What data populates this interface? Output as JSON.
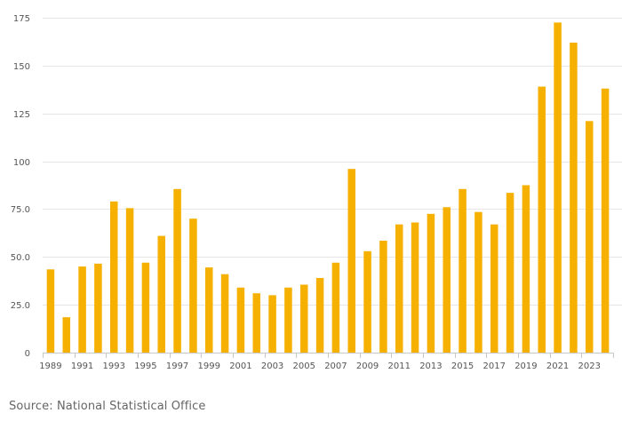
{
  "chart_data": {
    "type": "bar",
    "title": "",
    "xlabel": "",
    "ylabel": "",
    "categories": [
      "1989",
      "1990",
      "1991",
      "1992",
      "1993",
      "1994",
      "1995",
      "1996",
      "1997",
      "1998",
      "1999",
      "2000",
      "2001",
      "2002",
      "2003",
      "2004",
      "2005",
      "2006",
      "2007",
      "2008",
      "2009",
      "2010",
      "2011",
      "2012",
      "2013",
      "2014",
      "2015",
      "2016",
      "2017",
      "2018",
      "2019",
      "2020",
      "2021",
      "2022",
      "2023",
      "2024"
    ],
    "values": [
      43.5,
      18.5,
      45,
      46.5,
      79,
      75.5,
      47,
      61,
      85.5,
      70,
      44.5,
      41,
      34,
      31,
      30,
      34,
      35.5,
      39,
      47,
      96,
      53,
      58.5,
      67,
      68,
      72.5,
      76,
      85.5,
      73.5,
      67,
      83.5,
      87.5,
      139,
      172.5,
      162,
      121,
      138
    ],
    "ylim": [
      0,
      175
    ],
    "y_ticks": [
      0,
      25.0,
      50.0,
      75.0,
      100,
      125,
      150,
      175
    ],
    "y_tick_labels": [
      "0",
      "25.0",
      "50.0",
      "75.0",
      "100",
      "125",
      "150",
      "175"
    ],
    "x_tick_labels": [
      "1989",
      "1991",
      "1993",
      "1995",
      "1997",
      "1999",
      "2001",
      "2003",
      "2005",
      "2007",
      "2009",
      "2011",
      "2013",
      "2015",
      "2017",
      "2019",
      "2021",
      "2023"
    ],
    "grid": true,
    "bar_color": "#F5B000",
    "grid_color": "#e6e6e6"
  },
  "source": "Source: National Statistical Office"
}
